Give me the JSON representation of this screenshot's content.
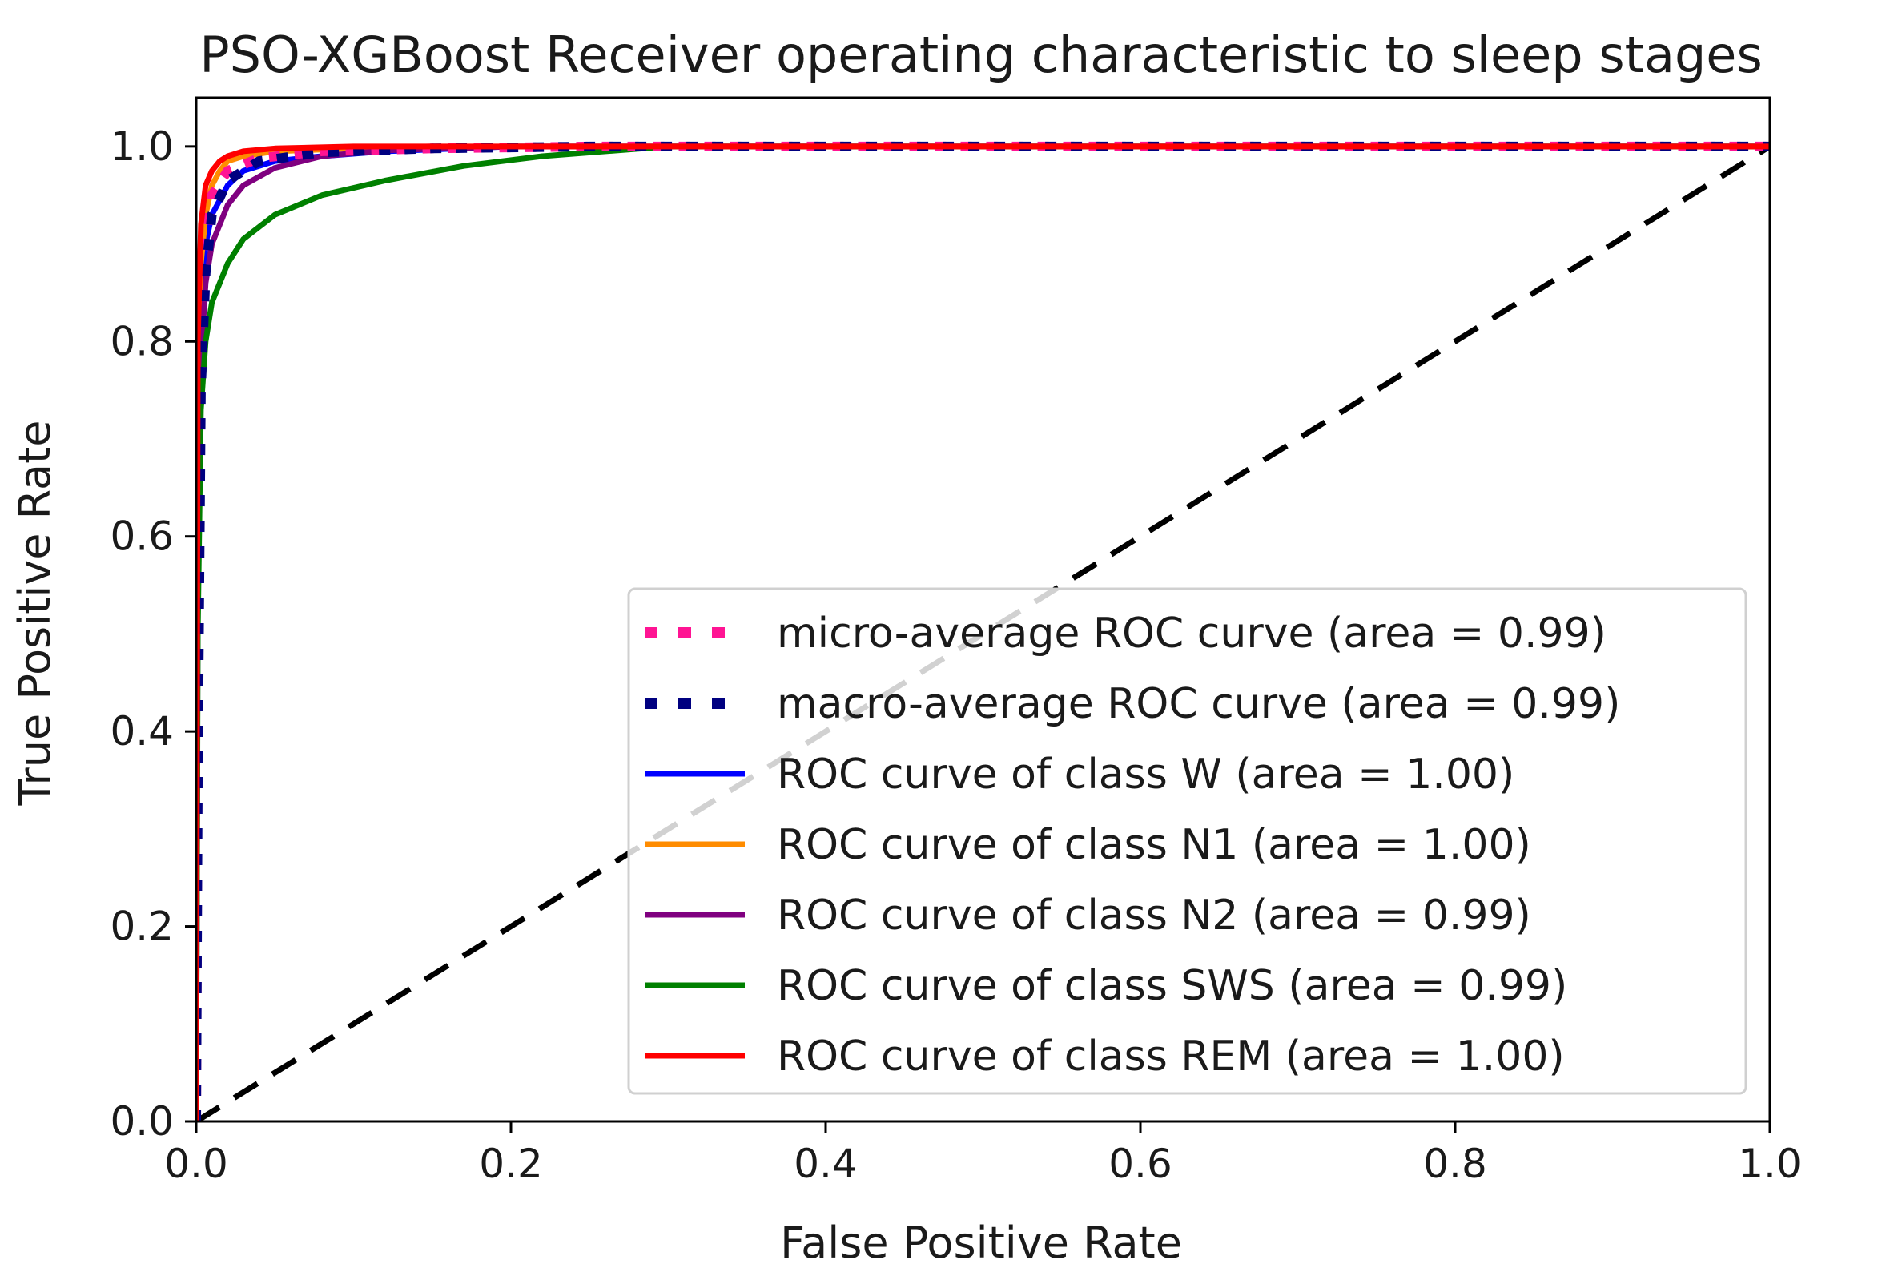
{
  "chart_data": {
    "type": "line",
    "title": "PSO-XGBoost Receiver operating characteristic to sleep stages",
    "xlabel": "False Positive Rate",
    "ylabel": "True Positive Rate",
    "xlim": [
      0.0,
      1.0
    ],
    "ylim": [
      0.0,
      1.05
    ],
    "xticks": [
      "0.0",
      "0.2",
      "0.4",
      "0.6",
      "0.8",
      "1.0"
    ],
    "yticks": [
      "0.0",
      "0.2",
      "0.4",
      "0.6",
      "0.8",
      "1.0"
    ],
    "legend_position": "lower-right",
    "grid": false,
    "series": [
      {
        "name": "micro-average ROC curve (area = 0.99)",
        "color": "#ff1493",
        "style": "dotted",
        "x": [
          0,
          0.001,
          0.003,
          0.006,
          0.01,
          0.02,
          0.04,
          0.08,
          0.15,
          0.25,
          1.0
        ],
        "y": [
          0,
          0.4,
          0.8,
          0.9,
          0.95,
          0.975,
          0.988,
          0.995,
          0.998,
          1.0,
          1.0
        ]
      },
      {
        "name": "macro-average ROC curve (area = 0.99)",
        "color": "#000080",
        "style": "dotted",
        "x": [
          0,
          0.001,
          0.003,
          0.006,
          0.01,
          0.02,
          0.04,
          0.08,
          0.15,
          0.25,
          1.0
        ],
        "y": [
          0,
          0.35,
          0.75,
          0.87,
          0.93,
          0.965,
          0.985,
          0.994,
          0.998,
          1.0,
          1.0
        ]
      },
      {
        "name": "ROC curve of class W (area = 1.00)",
        "color": "#0000ff",
        "style": "solid",
        "x": [
          0,
          0.001,
          0.003,
          0.006,
          0.01,
          0.02,
          0.03,
          0.05,
          0.08,
          0.12,
          0.2,
          1.0
        ],
        "y": [
          0,
          0.6,
          0.82,
          0.9,
          0.93,
          0.96,
          0.975,
          0.985,
          0.99,
          0.995,
          1.0,
          1.0
        ]
      },
      {
        "name": "ROC curve of class N1 (area = 1.00)",
        "color": "#ff8c00",
        "style": "solid",
        "x": [
          0,
          0.001,
          0.003,
          0.006,
          0.01,
          0.015,
          0.02,
          0.03,
          0.05,
          0.1,
          0.2,
          1.0
        ],
        "y": [
          0,
          0.75,
          0.88,
          0.93,
          0.96,
          0.975,
          0.985,
          0.99,
          0.995,
          0.998,
          1.0,
          1.0
        ]
      },
      {
        "name": "ROC curve of class N2 (area = 0.99)",
        "color": "#800080",
        "style": "solid",
        "x": [
          0,
          0.001,
          0.003,
          0.006,
          0.01,
          0.02,
          0.03,
          0.05,
          0.08,
          0.12,
          0.2,
          1.0
        ],
        "y": [
          0,
          0.55,
          0.78,
          0.86,
          0.9,
          0.94,
          0.96,
          0.978,
          0.99,
          0.996,
          1.0,
          1.0
        ]
      },
      {
        "name": "ROC curve of class SWS (area = 0.99)",
        "color": "#008000",
        "style": "solid",
        "x": [
          0,
          0.001,
          0.003,
          0.006,
          0.01,
          0.02,
          0.03,
          0.05,
          0.08,
          0.12,
          0.17,
          0.22,
          0.3,
          1.0
        ],
        "y": [
          0,
          0.5,
          0.73,
          0.8,
          0.84,
          0.88,
          0.905,
          0.93,
          0.95,
          0.965,
          0.98,
          0.99,
          1.0,
          1.0
        ]
      },
      {
        "name": "ROC curve of class REM (area = 1.00)",
        "color": "#ff0000",
        "style": "solid",
        "x": [
          0,
          0.001,
          0.003,
          0.006,
          0.01,
          0.015,
          0.02,
          0.03,
          0.05,
          0.1,
          1.0
        ],
        "y": [
          0,
          0.8,
          0.92,
          0.96,
          0.975,
          0.985,
          0.99,
          0.995,
          0.998,
          1.0,
          1.0
        ]
      }
    ],
    "reference_line": {
      "color": "#000000",
      "style": "dashed",
      "x": [
        0,
        1
      ],
      "y": [
        0,
        1
      ]
    }
  }
}
